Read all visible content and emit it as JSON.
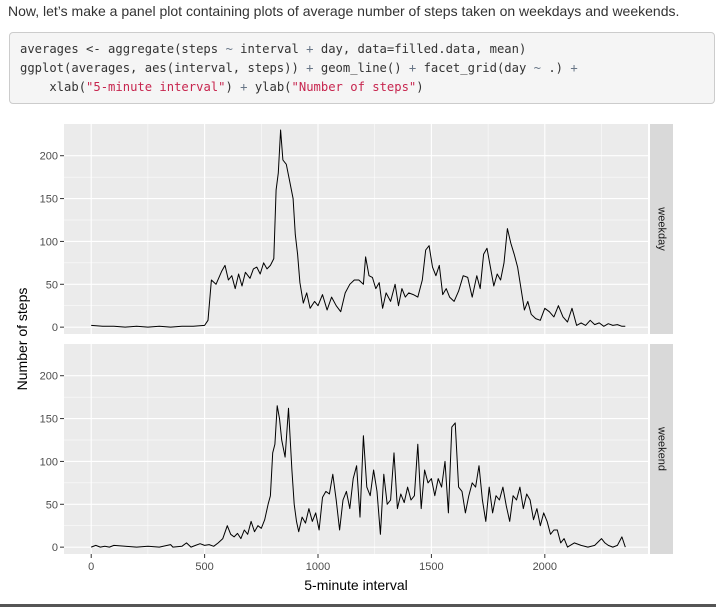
{
  "intro_text": "Now, let’s make a panel plot containing plots of average number of steps taken on weekdays and weekends.",
  "code_lines": [
    [
      {
        "t": "averages <- aggregate(steps ",
        "c": ""
      },
      {
        "t": "~",
        "c": "op"
      },
      {
        "t": " interval ",
        "c": ""
      },
      {
        "t": "+",
        "c": "op"
      },
      {
        "t": " day, data=filled.data, mean)",
        "c": ""
      }
    ],
    [
      {
        "t": "ggplot(averages, aes(interval, steps)) ",
        "c": ""
      },
      {
        "t": "+",
        "c": "op"
      },
      {
        "t": " geom_line() ",
        "c": ""
      },
      {
        "t": "+",
        "c": "op"
      },
      {
        "t": " facet_grid(day ",
        "c": ""
      },
      {
        "t": "~",
        "c": "op"
      },
      {
        "t": " .) ",
        "c": ""
      },
      {
        "t": "+",
        "c": "op"
      }
    ],
    [
      {
        "t": "    xlab(",
        "c": ""
      },
      {
        "t": "\"5-minute interval\"",
        "c": "str"
      },
      {
        "t": ") ",
        "c": ""
      },
      {
        "t": "+",
        "c": "op"
      },
      {
        "t": " ylab(",
        "c": ""
      },
      {
        "t": "\"Number of steps\"",
        "c": "str"
      },
      {
        "t": ")",
        "c": ""
      }
    ]
  ],
  "colors": {
    "panel_bg": "#ebebeb",
    "strip_bg": "#d9d9d9",
    "grid": "#ffffff",
    "line": "#000000",
    "text": "#4d4d4d"
  },
  "chart_data": {
    "type": "line",
    "xlabel": "5-minute interval",
    "ylabel": "Number of steps",
    "xlim": [
      -120,
      2455
    ],
    "ylim": [
      -8,
      237
    ],
    "x_ticks": [
      0,
      500,
      1000,
      1500,
      2000
    ],
    "y_ticks": [
      0,
      50,
      100,
      150,
      200
    ],
    "facets": [
      {
        "name": "weekday",
        "points": [
          [
            0,
            2
          ],
          [
            50,
            1
          ],
          [
            100,
            1
          ],
          [
            150,
            0
          ],
          [
            200,
            1
          ],
          [
            250,
            0
          ],
          [
            300,
            1
          ],
          [
            350,
            0
          ],
          [
            400,
            1
          ],
          [
            450,
            1
          ],
          [
            500,
            2
          ],
          [
            515,
            8
          ],
          [
            530,
            55
          ],
          [
            550,
            50
          ],
          [
            575,
            65
          ],
          [
            590,
            72
          ],
          [
            605,
            55
          ],
          [
            620,
            60
          ],
          [
            635,
            45
          ],
          [
            650,
            62
          ],
          [
            665,
            48
          ],
          [
            680,
            64
          ],
          [
            700,
            57
          ],
          [
            715,
            68
          ],
          [
            730,
            70
          ],
          [
            745,
            62
          ],
          [
            760,
            75
          ],
          [
            775,
            68
          ],
          [
            790,
            72
          ],
          [
            805,
            80
          ],
          [
            815,
            160
          ],
          [
            825,
            180
          ],
          [
            835,
            230
          ],
          [
            845,
            195
          ],
          [
            860,
            190
          ],
          [
            875,
            170
          ],
          [
            890,
            150
          ],
          [
            900,
            108
          ],
          [
            910,
            85
          ],
          [
            920,
            52
          ],
          [
            935,
            28
          ],
          [
            950,
            40
          ],
          [
            965,
            22
          ],
          [
            985,
            30
          ],
          [
            1000,
            25
          ],
          [
            1020,
            38
          ],
          [
            1040,
            20
          ],
          [
            1060,
            35
          ],
          [
            1080,
            25
          ],
          [
            1100,
            18
          ],
          [
            1120,
            40
          ],
          [
            1140,
            50
          ],
          [
            1160,
            55
          ],
          [
            1180,
            55
          ],
          [
            1200,
            50
          ],
          [
            1210,
            82
          ],
          [
            1225,
            60
          ],
          [
            1240,
            58
          ],
          [
            1255,
            45
          ],
          [
            1270,
            52
          ],
          [
            1285,
            22
          ],
          [
            1300,
            40
          ],
          [
            1320,
            30
          ],
          [
            1340,
            50
          ],
          [
            1355,
            25
          ],
          [
            1370,
            45
          ],
          [
            1385,
            35
          ],
          [
            1400,
            40
          ],
          [
            1420,
            38
          ],
          [
            1440,
            35
          ],
          [
            1460,
            55
          ],
          [
            1475,
            90
          ],
          [
            1490,
            95
          ],
          [
            1505,
            70
          ],
          [
            1520,
            60
          ],
          [
            1535,
            72
          ],
          [
            1550,
            38
          ],
          [
            1565,
            45
          ],
          [
            1580,
            35
          ],
          [
            1600,
            30
          ],
          [
            1620,
            42
          ],
          [
            1640,
            60
          ],
          [
            1660,
            58
          ],
          [
            1680,
            35
          ],
          [
            1700,
            60
          ],
          [
            1715,
            45
          ],
          [
            1730,
            85
          ],
          [
            1745,
            92
          ],
          [
            1760,
            70
          ],
          [
            1775,
            48
          ],
          [
            1790,
            62
          ],
          [
            1805,
            55
          ],
          [
            1820,
            75
          ],
          [
            1835,
            115
          ],
          [
            1850,
            98
          ],
          [
            1865,
            85
          ],
          [
            1880,
            70
          ],
          [
            1895,
            45
          ],
          [
            1910,
            20
          ],
          [
            1925,
            30
          ],
          [
            1940,
            15
          ],
          [
            1960,
            10
          ],
          [
            1980,
            8
          ],
          [
            2000,
            22
          ],
          [
            2020,
            18
          ],
          [
            2040,
            12
          ],
          [
            2060,
            25
          ],
          [
            2080,
            12
          ],
          [
            2100,
            6
          ],
          [
            2120,
            22
          ],
          [
            2140,
            2
          ],
          [
            2160,
            5
          ],
          [
            2180,
            2
          ],
          [
            2200,
            8
          ],
          [
            2220,
            3
          ],
          [
            2240,
            5
          ],
          [
            2260,
            1
          ],
          [
            2280,
            4
          ],
          [
            2300,
            2
          ],
          [
            2320,
            3
          ],
          [
            2340,
            1
          ],
          [
            2355,
            1
          ]
        ]
      },
      {
        "name": "weekend",
        "points": [
          [
            0,
            0
          ],
          [
            20,
            2
          ],
          [
            40,
            0
          ],
          [
            60,
            1
          ],
          [
            80,
            0
          ],
          [
            100,
            2
          ],
          [
            150,
            1
          ],
          [
            200,
            0
          ],
          [
            250,
            1
          ],
          [
            300,
            0
          ],
          [
            350,
            3
          ],
          [
            360,
            0
          ],
          [
            400,
            1
          ],
          [
            420,
            5
          ],
          [
            440,
            0
          ],
          [
            460,
            2
          ],
          [
            480,
            4
          ],
          [
            500,
            2
          ],
          [
            520,
            3
          ],
          [
            540,
            1
          ],
          [
            560,
            5
          ],
          [
            580,
            10
          ],
          [
            600,
            25
          ],
          [
            615,
            15
          ],
          [
            630,
            12
          ],
          [
            645,
            16
          ],
          [
            660,
            10
          ],
          [
            675,
            20
          ],
          [
            690,
            15
          ],
          [
            705,
            30
          ],
          [
            720,
            18
          ],
          [
            735,
            25
          ],
          [
            750,
            22
          ],
          [
            765,
            32
          ],
          [
            780,
            50
          ],
          [
            790,
            60
          ],
          [
            800,
            110
          ],
          [
            810,
            120
          ],
          [
            820,
            165
          ],
          [
            830,
            150
          ],
          [
            840,
            125
          ],
          [
            855,
            105
          ],
          [
            870,
            162
          ],
          [
            885,
            90
          ],
          [
            895,
            50
          ],
          [
            905,
            30
          ],
          [
            915,
            18
          ],
          [
            930,
            35
          ],
          [
            945,
            28
          ],
          [
            960,
            45
          ],
          [
            975,
            30
          ],
          [
            990,
            40
          ],
          [
            1005,
            20
          ],
          [
            1020,
            58
          ],
          [
            1035,
            65
          ],
          [
            1050,
            62
          ],
          [
            1065,
            85
          ],
          [
            1080,
            55
          ],
          [
            1095,
            20
          ],
          [
            1110,
            55
          ],
          [
            1125,
            65
          ],
          [
            1140,
            45
          ],
          [
            1155,
            80
          ],
          [
            1170,
            95
          ],
          [
            1185,
            35
          ],
          [
            1200,
            130
          ],
          [
            1215,
            70
          ],
          [
            1230,
            60
          ],
          [
            1245,
            90
          ],
          [
            1260,
            65
          ],
          [
            1275,
            15
          ],
          [
            1290,
            85
          ],
          [
            1305,
            50
          ],
          [
            1320,
            55
          ],
          [
            1335,
            110
          ],
          [
            1350,
            45
          ],
          [
            1365,
            62
          ],
          [
            1380,
            52
          ],
          [
            1395,
            70
          ],
          [
            1410,
            55
          ],
          [
            1425,
            60
          ],
          [
            1440,
            120
          ],
          [
            1455,
            45
          ],
          [
            1470,
            90
          ],
          [
            1485,
            75
          ],
          [
            1500,
            80
          ],
          [
            1515,
            60
          ],
          [
            1530,
            80
          ],
          [
            1545,
            70
          ],
          [
            1560,
            100
          ],
          [
            1575,
            40
          ],
          [
            1590,
            140
          ],
          [
            1605,
            145
          ],
          [
            1620,
            70
          ],
          [
            1635,
            65
          ],
          [
            1650,
            40
          ],
          [
            1665,
            60
          ],
          [
            1680,
            75
          ],
          [
            1695,
            70
          ],
          [
            1710,
            95
          ],
          [
            1725,
            55
          ],
          [
            1740,
            30
          ],
          [
            1755,
            70
          ],
          [
            1770,
            40
          ],
          [
            1785,
            60
          ],
          [
            1800,
            55
          ],
          [
            1815,
            70
          ],
          [
            1830,
            48
          ],
          [
            1845,
            30
          ],
          [
            1860,
            60
          ],
          [
            1875,
            55
          ],
          [
            1890,
            70
          ],
          [
            1905,
            45
          ],
          [
            1920,
            62
          ],
          [
            1935,
            55
          ],
          [
            1950,
            32
          ],
          [
            1965,
            45
          ],
          [
            1980,
            25
          ],
          [
            1995,
            40
          ],
          [
            2010,
            30
          ],
          [
            2025,
            15
          ],
          [
            2040,
            20
          ],
          [
            2055,
            20
          ],
          [
            2070,
            5
          ],
          [
            2085,
            10
          ],
          [
            2100,
            0
          ],
          [
            2130,
            5
          ],
          [
            2160,
            2
          ],
          [
            2190,
            0
          ],
          [
            2220,
            2
          ],
          [
            2250,
            10
          ],
          [
            2265,
            5
          ],
          [
            2280,
            2
          ],
          [
            2300,
            0
          ],
          [
            2320,
            2
          ],
          [
            2340,
            12
          ],
          [
            2355,
            0
          ]
        ]
      }
    ]
  }
}
